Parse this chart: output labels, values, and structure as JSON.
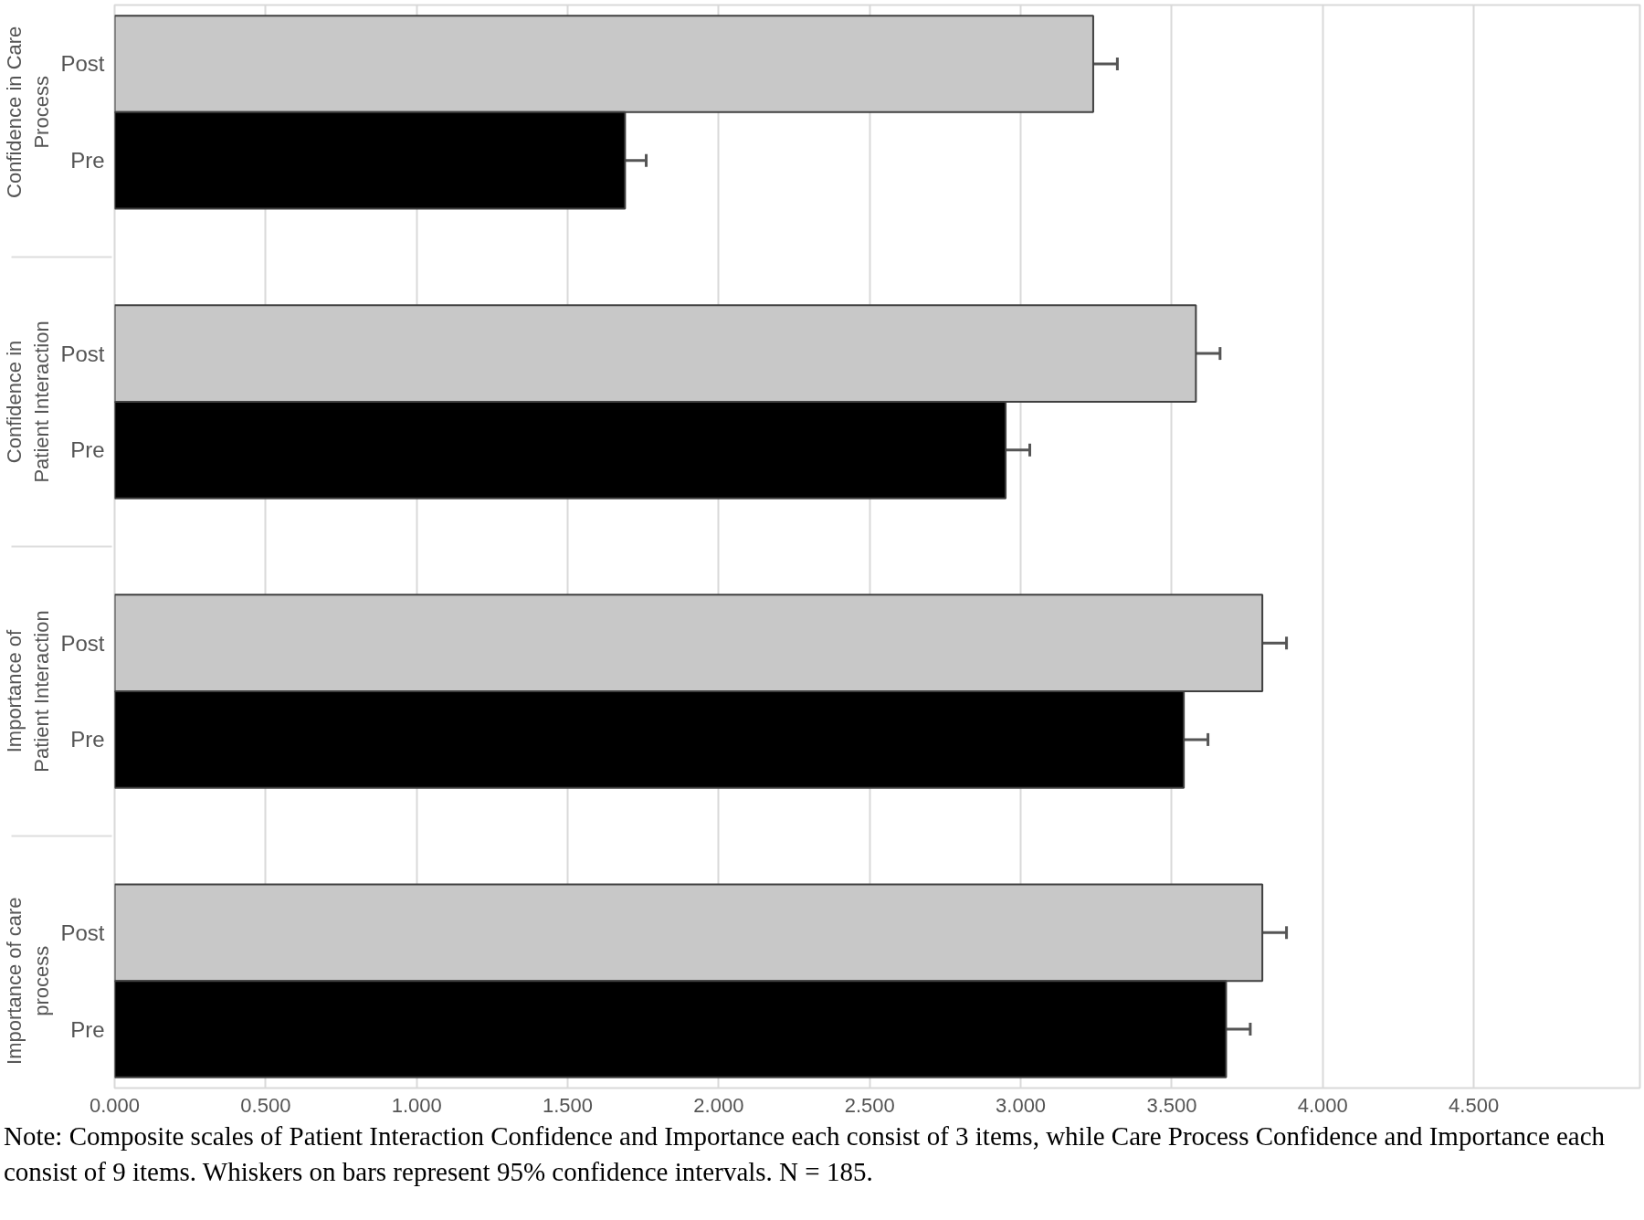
{
  "chart_data": {
    "type": "bar",
    "orientation": "horizontal",
    "categories": [
      "Confidence in Care Process",
      "Confidence in Patient Interaction",
      "Importance of Patient Interaction",
      "Importance of care process"
    ],
    "series": [
      {
        "name": "Post",
        "color": "#c8c8c8",
        "values": [
          3.24,
          3.58,
          3.8,
          3.8
        ],
        "errors": [
          0.08,
          0.08,
          0.08,
          0.08
        ]
      },
      {
        "name": "Pre",
        "color": "#000000",
        "values": [
          1.69,
          2.95,
          3.54,
          3.68
        ],
        "errors": [
          0.07,
          0.08,
          0.08,
          0.08
        ]
      }
    ],
    "xlim": [
      0,
      5.05
    ],
    "xticks": [
      {
        "value": 0,
        "label": "0.000"
      },
      {
        "value": 0.5,
        "label": "0.500"
      },
      {
        "value": 1,
        "label": "1.000"
      },
      {
        "value": 1.5,
        "label": "1.500"
      },
      {
        "value": 2,
        "label": "2.000"
      },
      {
        "value": 2.5,
        "label": "2.500"
      },
      {
        "value": 3,
        "label": "3.000"
      },
      {
        "value": 3.5,
        "label": "3.500"
      },
      {
        "value": 4,
        "label": "4.000"
      },
      {
        "value": 4.5,
        "label": "4.500"
      }
    ],
    "grid": "x",
    "legend": false,
    "annotations": [
      "Note: Composite scales of Patient Interaction Confidence and Importance each consist of 3 items, while Care Process Confidence and Importance each consist of 9 items. Whiskers on bars represent 95% confidence intervals. N = 185."
    ]
  }
}
